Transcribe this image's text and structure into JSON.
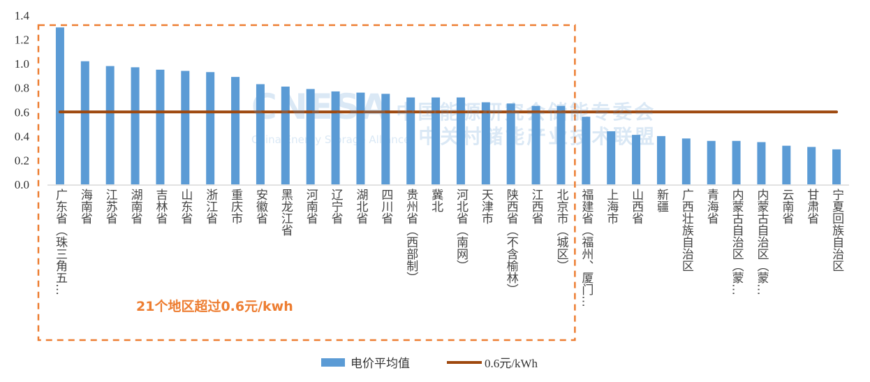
{
  "chart_data": {
    "type": "bar",
    "title": "",
    "xlabel": "",
    "ylabel": "",
    "ylim": [
      0,
      1.4
    ],
    "yticks": [
      "0.0",
      "0.2",
      "0.4",
      "0.6",
      "0.8",
      "1.0",
      "1.2",
      "1.4"
    ],
    "grid": false,
    "legend_position": "bottom",
    "categories": [
      "广东省（珠三角五…",
      "海南省",
      "江苏省",
      "湖南省",
      "吉林省",
      "山东省",
      "浙江省",
      "重庆市",
      "安徽省",
      "黑龙江省",
      "河南省",
      "辽宁省",
      "湖北省",
      "四川省",
      "贵州省（西部制）",
      "冀北",
      "河北省（南网）",
      "天津市",
      "陕西省（不含榆林）",
      "江西省",
      "北京市（城区）",
      "福建省（福州、厦门…",
      "上海市",
      "山西省",
      "新疆",
      "广西壮族自治区",
      "青海省",
      "内蒙古自治区（蒙…",
      "内蒙古自治区（蒙…",
      "云南省",
      "甘肃省",
      "宁夏回族自治区"
    ],
    "series": [
      {
        "name": "电价平均值",
        "type": "bar",
        "color": "#5B9BD5",
        "values": [
          1.3,
          1.02,
          0.98,
          0.97,
          0.95,
          0.94,
          0.93,
          0.89,
          0.83,
          0.81,
          0.79,
          0.77,
          0.76,
          0.75,
          0.72,
          0.72,
          0.72,
          0.68,
          0.67,
          0.65,
          0.65,
          0.56,
          0.44,
          0.41,
          0.4,
          0.38,
          0.36,
          0.36,
          0.35,
          0.32,
          0.31,
          0.29
        ]
      },
      {
        "name": "0.6元/kWh",
        "type": "line",
        "color": "#9E480E",
        "value": 0.6
      }
    ],
    "annotation": {
      "text": "21个地区超过0.6元/kwh",
      "color": "#ED7D31",
      "box_style": "dashed",
      "box_color": "#ED7D31",
      "covers_categories": 21
    }
  },
  "watermark": {
    "logo": "CNESA",
    "sub": "China Energy Storage Alliance",
    "cn1": "中国能源研究会储能专委会",
    "cn2": "中关村储能产业技术联盟"
  }
}
